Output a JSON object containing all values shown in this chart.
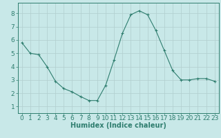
{
  "x": [
    0,
    1,
    2,
    3,
    4,
    5,
    6,
    7,
    8,
    9,
    10,
    11,
    12,
    13,
    14,
    15,
    16,
    17,
    18,
    19,
    20,
    21,
    22,
    23
  ],
  "y": [
    5.8,
    5.0,
    4.9,
    4.0,
    2.9,
    2.35,
    2.1,
    1.75,
    1.45,
    1.45,
    2.6,
    4.5,
    6.5,
    7.9,
    8.2,
    7.9,
    6.7,
    5.2,
    3.7,
    3.0,
    3.0,
    3.1,
    3.1,
    2.9
  ],
  "xlabel": "Humidex (Indice chaleur)",
  "ylim": [
    0.5,
    8.8
  ],
  "xlim": [
    -0.5,
    23.5
  ],
  "yticks": [
    1,
    2,
    3,
    4,
    5,
    6,
    7,
    8
  ],
  "xticks": [
    0,
    1,
    2,
    3,
    4,
    5,
    6,
    7,
    8,
    9,
    10,
    11,
    12,
    13,
    14,
    15,
    16,
    17,
    18,
    19,
    20,
    21,
    22,
    23
  ],
  "line_color": "#2E7D6E",
  "marker_color": "#2E7D6E",
  "bg_color": "#C8E8E8",
  "grid_color": "#B0CECE",
  "axis_color": "#2E7D6E",
  "tick_label_color": "#2E7D6E",
  "xlabel_color": "#2E7D6E",
  "xlabel_fontsize": 7.0,
  "tick_fontsize": 6.5
}
